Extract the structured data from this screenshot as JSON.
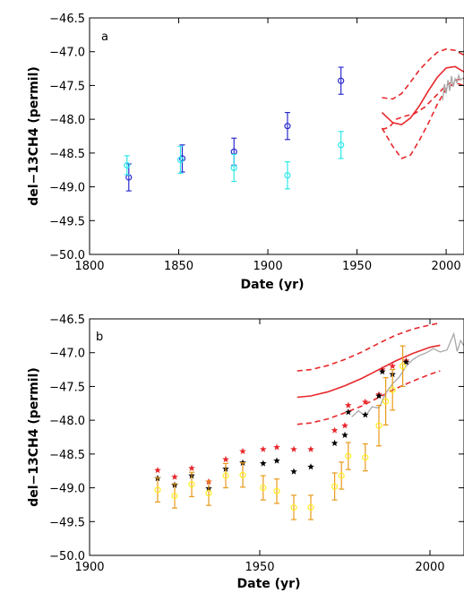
{
  "colors": {
    "dark_blue": "#2b2bd0",
    "cyan": "#2ee8ea",
    "red": "#e8282c",
    "black": "#000000",
    "yellow": "#ffee22",
    "orange": "#e89a1a",
    "gray": "#a8a8a8"
  },
  "chart_data": [
    {
      "type": "scatter",
      "panel": "a",
      "xlabel": "Date (yr)",
      "ylabel": "del−13CH4 (permil)",
      "xlim": [
        1800,
        2010
      ],
      "ylim": [
        -50.0,
        -46.5
      ],
      "xticks": [
        1800,
        1850,
        1900,
        1950,
        2000
      ],
      "xtick_labels": [
        "1800",
        "1850",
        "1900",
        "1950",
        "2000"
      ],
      "yticks": [
        -50.0,
        -49.5,
        -49.0,
        -48.5,
        -48.0,
        -47.5,
        -47.0,
        -46.5
      ],
      "ytick_labels": [
        "−50.0",
        "−49.5",
        "−49.0",
        "−48.5",
        "−48.0",
        "−47.5",
        "−47.0",
        "−46.5"
      ],
      "grid": false,
      "series": [
        {
          "color_key": "dark_blue",
          "marker": "circle",
          "points": [
            {
              "x": 1822,
              "y": -48.86,
              "err": 0.2
            },
            {
              "x": 1852,
              "y": -48.58,
              "err": 0.2
            },
            {
              "x": 1881,
              "y": -48.48,
              "err": 0.2
            },
            {
              "x": 1911,
              "y": -48.1,
              "err": 0.2
            },
            {
              "x": 1941,
              "y": -47.43,
              "err": 0.2
            }
          ]
        },
        {
          "color_key": "cyan",
          "marker": "circle",
          "points": [
            {
              "x": 1821,
              "y": -48.68,
              "err": 0.14
            },
            {
              "x": 1851,
              "y": -48.6,
              "err": 0.2
            },
            {
              "x": 1881,
              "y": -48.72,
              "err": 0.2
            },
            {
              "x": 1911,
              "y": -48.83,
              "err": 0.2
            },
            {
              "x": 1941,
              "y": -48.38,
              "err": 0.2
            }
          ]
        },
        {
          "color_key": "red",
          "style": "solid",
          "points": [
            [
              1964,
              -47.9
            ],
            [
              1970,
              -48.05
            ],
            [
              1975,
              -48.08
            ],
            [
              1980,
              -47.98
            ],
            [
              1985,
              -47.8
            ],
            [
              1990,
              -47.58
            ],
            [
              1995,
              -47.38
            ],
            [
              2000,
              -47.24
            ],
            [
              2005,
              -47.22
            ],
            [
              2010,
              -47.3
            ]
          ]
        },
        {
          "color_key": "red",
          "style": "dashed",
          "points": [
            [
              1964,
              -47.68
            ],
            [
              1970,
              -47.7
            ],
            [
              1975,
              -47.62
            ],
            [
              1980,
              -47.45
            ],
            [
              1985,
              -47.27
            ],
            [
              1990,
              -47.13
            ],
            [
              1995,
              -47.01
            ],
            [
              2000,
              -46.96
            ],
            [
              2005,
              -46.98
            ],
            [
              2010,
              -47.05
            ]
          ]
        },
        {
          "color_key": "red",
          "style": "dashed",
          "points": [
            [
              1964,
              -48.13
            ],
            [
              1970,
              -48.4
            ],
            [
              1975,
              -48.58
            ],
            [
              1980,
              -48.53
            ],
            [
              1985,
              -48.31
            ],
            [
              1990,
              -48.06
            ],
            [
              1995,
              -47.78
            ],
            [
              2000,
              -47.55
            ],
            [
              2005,
              -47.46
            ],
            [
              2010,
              -47.5
            ]
          ]
        },
        {
          "color_key": "red",
          "style": "dashed",
          "points": [
            [
              1964,
              -48.15
            ],
            [
              1968,
              -48.12
            ],
            [
              1972,
              -48.0
            ],
            [
              1976,
              -47.96
            ],
            [
              1982,
              -47.92
            ],
            [
              1988,
              -47.82
            ],
            [
              1994,
              -47.66
            ],
            [
              2000,
              -47.5
            ],
            [
              2005,
              -47.42
            ],
            [
              2010,
              -47.4
            ]
          ]
        },
        {
          "color_key": "gray",
          "style": "solid",
          "points": [
            [
              1998,
              -47.72
            ],
            [
              1999,
              -47.48
            ],
            [
              2000,
              -47.62
            ],
            [
              2001,
              -47.42
            ],
            [
              2002,
              -47.58
            ],
            [
              2003,
              -47.36
            ],
            [
              2004,
              -47.52
            ],
            [
              2005,
              -47.4
            ],
            [
              2006,
              -47.46
            ],
            [
              2007,
              -47.35
            ],
            [
              2008,
              -47.42
            ],
            [
              2010,
              -47.38
            ]
          ]
        }
      ]
    },
    {
      "type": "scatter",
      "panel": "b",
      "xlabel": "Date (yr)",
      "ylabel": "del−13CH4 (permil)",
      "xlim": [
        1900,
        2010
      ],
      "ylim": [
        -50.0,
        -46.5
      ],
      "xticks": [
        1900,
        1950,
        2000
      ],
      "xtick_labels": [
        "1900",
        "1950",
        "2000"
      ],
      "yticks": [
        -50.0,
        -49.5,
        -49.0,
        -48.5,
        -48.0,
        -47.5,
        -47.0,
        -46.5
      ],
      "ytick_labels": [
        "−50.0",
        "−49.5",
        "−49.0",
        "−48.5",
        "−48.0",
        "−47.5",
        "−47.0",
        "−46.5"
      ],
      "grid": false,
      "series": [
        {
          "color_key": "red",
          "marker": "star",
          "points": [
            [
              1920,
              -48.74
            ],
            [
              1925,
              -48.84
            ],
            [
              1930,
              -48.71
            ],
            [
              1935,
              -48.91
            ],
            [
              1940,
              -48.58
            ],
            [
              1945,
              -48.46
            ],
            [
              1951,
              -48.43
            ],
            [
              1955,
              -48.4
            ],
            [
              1960,
              -48.43
            ],
            [
              1965,
              -48.43
            ],
            [
              1972,
              -48.15
            ],
            [
              1975,
              -48.08
            ],
            [
              1976,
              -47.78
            ],
            [
              1981,
              -47.73
            ],
            [
              1985,
              -47.62
            ],
            [
              1986,
              -47.25
            ],
            [
              1989,
              -47.2
            ],
            [
              1993,
              -47.12
            ]
          ]
        },
        {
          "color_key": "black",
          "marker": "star",
          "points": [
            [
              1920,
              -48.86
            ],
            [
              1925,
              -48.96
            ],
            [
              1930,
              -48.82
            ],
            [
              1935,
              -49.01
            ],
            [
              1940,
              -48.72
            ],
            [
              1945,
              -48.63
            ],
            [
              1951,
              -48.64
            ],
            [
              1955,
              -48.6
            ],
            [
              1960,
              -48.76
            ],
            [
              1965,
              -48.69
            ],
            [
              1972,
              -48.34
            ],
            [
              1975,
              -48.22
            ],
            [
              1976,
              -47.88
            ],
            [
              1981,
              -47.92
            ],
            [
              1985,
              -47.64
            ],
            [
              1986,
              -47.28
            ],
            [
              1989,
              -47.32
            ],
            [
              1993,
              -47.14
            ]
          ]
        },
        {
          "color_key": "yellow",
          "errcolor_key": "orange",
          "marker": "circle",
          "points": [
            {
              "x": 1920,
              "y": -49.03,
              "err": 0.18
            },
            {
              "x": 1925,
              "y": -49.12,
              "err": 0.18
            },
            {
              "x": 1930,
              "y": -48.95,
              "err": 0.18
            },
            {
              "x": 1935,
              "y": -49.08,
              "err": 0.18
            },
            {
              "x": 1940,
              "y": -48.82,
              "err": 0.18
            },
            {
              "x": 1945,
              "y": -48.81,
              "err": 0.18
            },
            {
              "x": 1951,
              "y": -49.0,
              "err": 0.18
            },
            {
              "x": 1955,
              "y": -49.05,
              "err": 0.18
            },
            {
              "x": 1960,
              "y": -49.29,
              "err": 0.18
            },
            {
              "x": 1965,
              "y": -49.29,
              "err": 0.18
            },
            {
              "x": 1972,
              "y": -48.98,
              "err": 0.2
            },
            {
              "x": 1974,
              "y": -48.82,
              "err": 0.2
            },
            {
              "x": 1976,
              "y": -48.53,
              "err": 0.2
            },
            {
              "x": 1981,
              "y": -48.55,
              "err": 0.2
            },
            {
              "x": 1985,
              "y": -48.08,
              "err": 0.3
            },
            {
              "x": 1987,
              "y": -47.72,
              "err": 0.35
            },
            {
              "x": 1989,
              "y": -47.55,
              "err": 0.3
            },
            {
              "x": 1992,
              "y": -47.2,
              "err": 0.3
            }
          ]
        },
        {
          "color_key": "red",
          "style": "solid",
          "points": [
            [
              1961,
              -47.66
            ],
            [
              1965,
              -47.64
            ],
            [
              1970,
              -47.58
            ],
            [
              1975,
              -47.49
            ],
            [
              1980,
              -47.38
            ],
            [
              1985,
              -47.25
            ],
            [
              1990,
              -47.12
            ],
            [
              1995,
              -47.01
            ],
            [
              2000,
              -46.92
            ],
            [
              2003,
              -46.89
            ]
          ]
        },
        {
          "color_key": "red",
          "style": "dashed",
          "points": [
            [
              1961,
              -47.27
            ],
            [
              1965,
              -47.25
            ],
            [
              1970,
              -47.19
            ],
            [
              1975,
              -47.1
            ],
            [
              1980,
              -46.99
            ],
            [
              1985,
              -46.86
            ],
            [
              1990,
              -46.74
            ],
            [
              1995,
              -46.65
            ],
            [
              2000,
              -46.59
            ],
            [
              2003,
              -46.56
            ]
          ]
        },
        {
          "color_key": "red",
          "style": "dashed",
          "points": [
            [
              1961,
              -48.06
            ],
            [
              1965,
              -48.04
            ],
            [
              1970,
              -47.98
            ],
            [
              1975,
              -47.89
            ],
            [
              1980,
              -47.79
            ],
            [
              1985,
              -47.66
            ],
            [
              1990,
              -47.53
            ],
            [
              1995,
              -47.42
            ],
            [
              2000,
              -47.32
            ],
            [
              2003,
              -47.27
            ]
          ]
        },
        {
          "color_key": "gray",
          "style": "solid",
          "points": [
            [
              1977,
              -47.95
            ],
            [
              1979,
              -47.86
            ],
            [
              1981,
              -47.94
            ],
            [
              1983,
              -47.8
            ],
            [
              1985,
              -47.82
            ],
            [
              1987,
              -47.6
            ],
            [
              1989,
              -47.46
            ],
            [
              1991,
              -47.36
            ],
            [
              1993,
              -47.2
            ],
            [
              1995,
              -47.1
            ],
            [
              1997,
              -47.04
            ],
            [
              1999,
              -47.0
            ],
            [
              2001,
              -46.94
            ],
            [
              2003,
              -46.99
            ],
            [
              2005,
              -46.96
            ],
            [
              2007,
              -46.72
            ],
            [
              2008,
              -46.98
            ],
            [
              2009,
              -46.82
            ],
            [
              2010,
              -46.9
            ]
          ]
        }
      ]
    }
  ]
}
